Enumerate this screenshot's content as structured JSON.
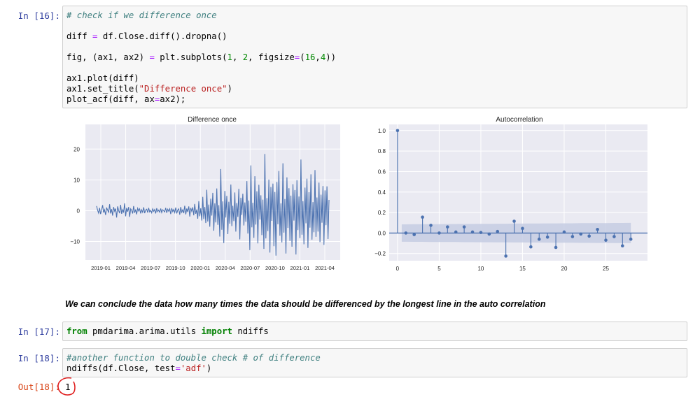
{
  "cells": [
    {
      "prompt": "In [16]:",
      "lines": [
        [
          {
            "t": "# check if we difference once",
            "c": "c-com"
          }
        ],
        [],
        [
          {
            "t": "diff "
          },
          {
            "t": "=",
            "c": "c-op"
          },
          {
            "t": " df.Close.diff().dropna()"
          }
        ],
        [],
        [
          {
            "t": "fig, (ax1, ax2) "
          },
          {
            "t": "=",
            "c": "c-op"
          },
          {
            "t": " plt.subplots("
          },
          {
            "t": "1",
            "c": "c-num"
          },
          {
            "t": ", "
          },
          {
            "t": "2",
            "c": "c-num"
          },
          {
            "t": ", figsize"
          },
          {
            "t": "=",
            "c": "c-op"
          },
          {
            "t": "("
          },
          {
            "t": "16",
            "c": "c-num"
          },
          {
            "t": ","
          },
          {
            "t": "4",
            "c": "c-num"
          },
          {
            "t": "))"
          }
        ],
        [],
        [
          {
            "t": "ax1.plot(diff)"
          }
        ],
        [
          {
            "t": "ax1.set_title("
          },
          {
            "t": "\"Difference once\"",
            "c": "c-str"
          },
          {
            "t": ")"
          }
        ],
        [
          {
            "t": "plot_acf(diff, ax"
          },
          {
            "t": "=",
            "c": "c-op"
          },
          {
            "t": "ax2);"
          }
        ]
      ]
    },
    {
      "prompt": "In [17]:",
      "lines": [
        [
          {
            "t": "from",
            "c": "c-kw"
          },
          {
            "t": " pmdarima.arima.utils "
          },
          {
            "t": "import",
            "c": "c-kw"
          },
          {
            "t": " ndiffs"
          }
        ]
      ]
    },
    {
      "prompt": "In [18]:",
      "lines": [
        [
          {
            "t": "#another function to double check # of difference",
            "c": "c-com"
          }
        ],
        [
          {
            "t": "ndiffs(df.Close, test"
          },
          {
            "t": "=",
            "c": "c-op"
          },
          {
            "t": "'adf'",
            "c": "c-str"
          },
          {
            "t": ")"
          }
        ]
      ]
    }
  ],
  "markdown_text": "We can conclude the data how many times the data should be differenced by the longest line in the auto correlation",
  "output": {
    "prompt": "Out[18]:",
    "value": "1"
  },
  "colors": {
    "line": "#4c72b0",
    "plot_bg": "#eaeaf2",
    "band": "#c5cce3",
    "annotation": "#e02020"
  },
  "chart_data": [
    {
      "type": "line",
      "title": "Difference once",
      "xlabel": "",
      "ylabel": "",
      "x_ticks": [
        "2019-01",
        "2019-04",
        "2019-07",
        "2019-10",
        "2020-01",
        "2020-04",
        "2020-07",
        "2020-10",
        "2021-01",
        "2021-04"
      ],
      "y_ticks": [
        20,
        10,
        0,
        -10
      ],
      "ylim": [
        -16,
        28
      ],
      "grid": true,
      "series": [
        {
          "values": [
            1.5,
            0.2,
            -0.8,
            0.9,
            -1.1,
            0.4,
            1.8,
            -0.6,
            0.3,
            -1.4,
            1.0,
            0.2,
            -0.5,
            2.1,
            -0.9,
            0.5,
            -1.6,
            1.2,
            -0.2,
            0.7,
            -2.2,
            1.4,
            0.0,
            -0.8,
            1.9,
            -1.0,
            0.3,
            -0.4,
            2.4,
            -1.8,
            0.9,
            -0.3,
            1.2,
            -2.0,
            0.6,
            0.1,
            -0.9,
            1.5,
            -0.7,
            0.4,
            -1.2,
            0.8,
            -0.1,
            0.6,
            -0.9,
            0.3,
            -0.5,
            1.1,
            -0.8,
            0.2,
            0.5,
            -0.6,
            0.9,
            -0.4,
            0.1,
            -0.7,
            0.6,
            -0.2,
            0.4,
            -0.9,
            0.8,
            -0.3,
            0.2,
            -0.5,
            0.7,
            -0.6,
            0.3,
            0.0,
            -0.4,
            0.9,
            -0.7,
            0.5,
            -0.2,
            0.6,
            -1.1,
            0.8,
            -0.3,
            0.4,
            -0.6,
            1.0,
            -0.9,
            0.2,
            0.6,
            -1.3,
            1.2,
            -0.5,
            0.3,
            -0.8,
            1.6,
            -1.2,
            0.7,
            -0.4,
            1.4,
            -1.9,
            0.9,
            -0.2,
            1.1,
            -1.5,
            2.2,
            -1.0,
            0.4,
            -2.6,
            3.1,
            -1.8,
            0.8,
            -3.2,
            4.5,
            -2.7,
            1.2,
            -4.0,
            6.8,
            -3.5,
            2.0,
            -5.2,
            3.9,
            -1.6,
            5.8,
            -6.5,
            2.4,
            -3.8,
            7.2,
            -4.6,
            1.8,
            -8.4,
            13.5,
            -6.2,
            3.0,
            -10.5,
            6.4,
            -2.2,
            4.8,
            -7.6,
            2.9,
            -4.2,
            8.5,
            -5.0,
            1.6,
            -3.4,
            5.9,
            -6.8,
            2.5,
            -2.0,
            7.1,
            -9.3,
            4.2,
            -1.4,
            5.5,
            -4.8,
            2.7,
            -3.6,
            9.6,
            -7.4,
            3.3,
            -12.8,
            14.7,
            -5.4,
            2.6,
            -8.8,
            11.2,
            -4.5,
            6.3,
            -10.6,
            8.4,
            -2.9,
            5.0,
            -7.9,
            3.6,
            -12.4,
            18.4,
            -9.0,
            4.1,
            -6.6,
            10.1,
            -13.6,
            7.7,
            -3.3,
            8.8,
            -11.5,
            6.1,
            -14.6,
            9.3,
            -4.4,
            12.9,
            -8.1,
            2.4,
            -10.3,
            15.4,
            -7.1,
            3.8,
            -13.9,
            10.8,
            -5.6,
            7.3,
            -9.8,
            4.9,
            -11.7,
            8.6,
            -3.2,
            6.7,
            -14.2,
            9.9,
            -6.3,
            4.6,
            -8.9,
            16.6,
            -7.8,
            3.1,
            -10.9,
            7.5,
            -4.1,
            10.4,
            -12.1,
            6.0,
            -5.5,
            11.8,
            -9.4,
            2.8,
            -7.0,
            13.2,
            -8.5,
            4.3,
            -6.8,
            9.1,
            -10.2,
            5.2,
            -3.9,
            8.0,
            -11.1,
            6.6,
            -4.7,
            7.9,
            -9.2,
            3.5
          ]
        }
      ]
    },
    {
      "type": "stem",
      "title": "Autocorrelation",
      "x_ticks": [
        0,
        5,
        10,
        15,
        20,
        25
      ],
      "y_ticks": [
        1.0,
        0.8,
        0.6,
        0.4,
        0.2,
        0.0,
        -0.2
      ],
      "xlim": [
        -1,
        30
      ],
      "ylim": [
        -0.27,
        1.06
      ],
      "grid": true,
      "lags": [
        0,
        1,
        2,
        3,
        4,
        5,
        6,
        7,
        8,
        9,
        10,
        11,
        12,
        13,
        14,
        15,
        16,
        17,
        18,
        19,
        20,
        21,
        22,
        23,
        24,
        25,
        26,
        27,
        28
      ],
      "values": [
        1.0,
        0.0,
        -0.015,
        0.155,
        0.075,
        0.0,
        0.06,
        0.01,
        0.06,
        0.01,
        0.005,
        -0.01,
        0.015,
        -0.225,
        0.115,
        0.045,
        -0.135,
        -0.06,
        -0.04,
        -0.14,
        0.01,
        -0.035,
        -0.01,
        -0.03,
        0.035,
        -0.07,
        -0.035,
        -0.125,
        -0.06
      ],
      "conf_band": [
        0.085,
        0.085,
        0.086,
        0.086,
        0.087,
        0.087,
        0.088,
        0.088,
        0.089,
        0.089,
        0.09,
        0.09,
        0.091,
        0.091,
        0.092,
        0.092,
        0.093,
        0.093,
        0.094,
        0.094,
        0.095,
        0.095,
        0.096,
        0.096,
        0.097,
        0.097,
        0.098,
        0.098,
        0.099
      ]
    }
  ]
}
